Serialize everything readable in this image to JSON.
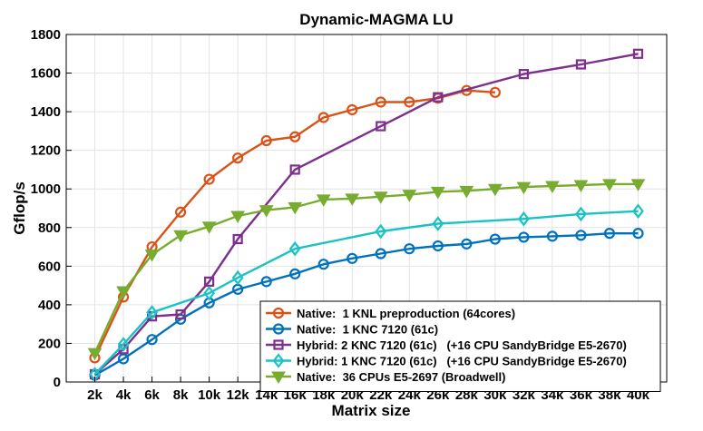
{
  "chart_data": {
    "type": "line",
    "title": "Dynamic-MAGMA LU",
    "xlabel": "Matrix size",
    "ylabel": "Gflop/s",
    "xlim": [
      0,
      42
    ],
    "ylim": [
      0,
      1800
    ],
    "xticks": [
      2,
      4,
      6,
      8,
      10,
      12,
      14,
      16,
      18,
      20,
      22,
      24,
      26,
      28,
      30,
      32,
      34,
      36,
      38,
      40
    ],
    "xtick_labels": [
      "2k",
      "4k",
      "6k",
      "8k",
      "10k",
      "12k",
      "14k",
      "16k",
      "18k",
      "20k",
      "22k",
      "24k",
      "26k",
      "28k",
      "30k",
      "32k",
      "34k",
      "36k",
      "38k",
      "40k"
    ],
    "yticks": [
      0,
      200,
      400,
      600,
      800,
      1000,
      1200,
      1400,
      1600,
      1800
    ],
    "ytick_labels": [
      "0",
      "200",
      "400",
      "600",
      "800",
      "1000",
      "1200",
      "1400",
      "1600",
      "1800"
    ],
    "grid": true,
    "legend_position": "bottom-right",
    "series": [
      {
        "name": "Native:  1 KNL preproduction (64cores)",
        "color": "#d95319",
        "marker": "circle",
        "x": [
          2,
          4,
          6,
          8,
          10,
          12,
          14,
          16,
          18,
          20,
          22,
          24,
          26,
          28,
          30
        ],
        "values": [
          125,
          440,
          700,
          880,
          1050,
          1160,
          1250,
          1270,
          1370,
          1410,
          1450,
          1450,
          1470,
          1510,
          1500
        ]
      },
      {
        "name": "Native:  1 KNC 7120 (61c)",
        "color": "#0072bd",
        "marker": "circle",
        "x": [
          2,
          4,
          6,
          8,
          10,
          12,
          14,
          16,
          18,
          20,
          22,
          24,
          26,
          28,
          30,
          32,
          34,
          36,
          38,
          40
        ],
        "values": [
          35,
          120,
          220,
          325,
          410,
          480,
          520,
          560,
          610,
          640,
          665,
          690,
          705,
          715,
          740,
          750,
          755,
          760,
          770,
          770
        ]
      },
      {
        "name": "Hybrid: 2 KNC 7120 (61c)   (+16 CPU SandyBridge E5-2670)",
        "color": "#7e2f8e",
        "marker": "square",
        "x": [
          2,
          4,
          6,
          8,
          10,
          12,
          16,
          22,
          26,
          32,
          36,
          40
        ],
        "values": [
          40,
          170,
          340,
          350,
          520,
          740,
          1100,
          1325,
          1475,
          1595,
          1645,
          1700
        ]
      },
      {
        "name": "Hybrid: 1 KNC 7120 (61c)   (+16 CPU SandyBridge E5-2670)",
        "color": "#19c3c3",
        "marker": "diamond",
        "x": [
          2,
          4,
          6,
          10,
          12,
          16,
          22,
          26,
          32,
          36,
          40
        ],
        "values": [
          40,
          195,
          360,
          460,
          540,
          690,
          780,
          820,
          845,
          870,
          885
        ]
      },
      {
        "name": "Native:  36 CPUs E5-2697 (Broadwell)",
        "color": "#77ac30",
        "marker": "triangle-down",
        "x": [
          2,
          4,
          6,
          8,
          10,
          12,
          14,
          16,
          18,
          20,
          22,
          24,
          26,
          28,
          30,
          32,
          34,
          36,
          38,
          40
        ],
        "values": [
          150,
          470,
          660,
          760,
          805,
          860,
          890,
          905,
          945,
          950,
          960,
          970,
          985,
          990,
          1000,
          1010,
          1015,
          1020,
          1025,
          1025
        ]
      }
    ]
  }
}
